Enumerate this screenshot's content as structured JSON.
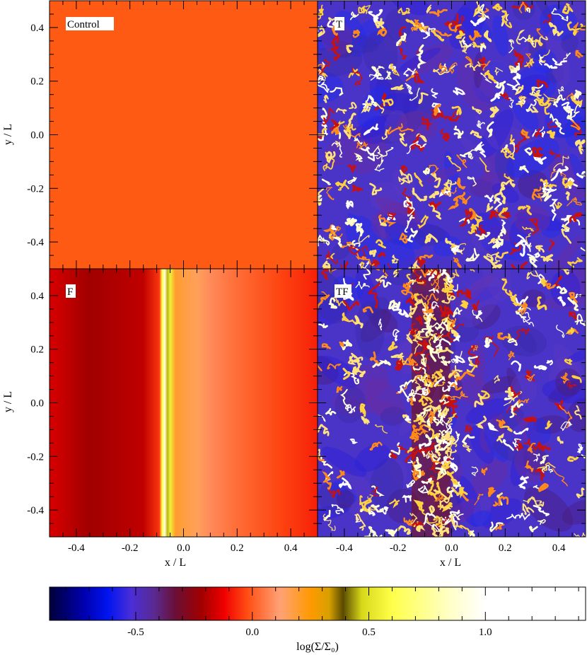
{
  "chart_data": {
    "type": "heatmap",
    "layout": "2x2 panels",
    "panels": [
      {
        "label": "Control",
        "field": "uniform",
        "value": 0.0
      },
      {
        "label": "T",
        "field": "turbulent filaments"
      },
      {
        "label": "F",
        "field": "vertical filament",
        "x_profile": [
          {
            "x": -0.5,
            "v": -0.15
          },
          {
            "x": -0.35,
            "v": -0.22
          },
          {
            "x": -0.15,
            "v": -0.18
          },
          {
            "x": -0.09,
            "v": -0.05
          },
          {
            "x": -0.08,
            "v": 0.6
          },
          {
            "x": -0.07,
            "v": 0.9
          },
          {
            "x": -0.06,
            "v": 0.45
          },
          {
            "x": -0.05,
            "v": 0.55
          },
          {
            "x": -0.03,
            "v": 0.2
          },
          {
            "x": 0.0,
            "v": 0.18
          },
          {
            "x": 0.05,
            "v": 0.15
          },
          {
            "x": 0.1,
            "v": 0.08
          },
          {
            "x": 0.2,
            "v": 0.03
          },
          {
            "x": 0.35,
            "v": -0.03
          },
          {
            "x": 0.5,
            "v": -0.08
          }
        ]
      },
      {
        "label": "TF",
        "field": "turbulent filaments + vertical filament"
      }
    ],
    "xlabel": "x / L",
    "ylabel": "y / L",
    "xlim": [
      -0.5,
      0.5
    ],
    "ylim": [
      -0.5,
      0.5
    ],
    "x_ticks": [
      "-0.4",
      "-0.2",
      "0.0",
      "0.2",
      "0.4"
    ],
    "y_ticks": [
      "0.4",
      "0.2",
      "0.0",
      "-0.2",
      "-0.4"
    ],
    "colorbar": {
      "label": "log(Σ/Σ₀)",
      "range": [
        -0.87,
        1.43
      ],
      "ticks": [
        "-0.5",
        "0.0",
        "0.5",
        "1.0"
      ],
      "tick_values": [
        -0.5,
        0.0,
        0.5,
        1.0
      ],
      "colormap": "blue-purple-red-orange-yellow-white",
      "stops": [
        {
          "v": -0.87,
          "color": "#00003a"
        },
        {
          "v": -0.72,
          "color": "#0000b0"
        },
        {
          "v": -0.62,
          "color": "#0014f0"
        },
        {
          "v": -0.52,
          "color": "#4a2ed8"
        },
        {
          "v": -0.42,
          "color": "#5a2a90"
        },
        {
          "v": -0.33,
          "color": "#6a0f36"
        },
        {
          "v": -0.22,
          "color": "#a00000"
        },
        {
          "v": -0.12,
          "color": "#f00000"
        },
        {
          "v": -0.02,
          "color": "#ff4f14"
        },
        {
          "v": 0.12,
          "color": "#ffa276"
        },
        {
          "v": 0.25,
          "color": "#ff9a00"
        },
        {
          "v": 0.33,
          "color": "#d7a000"
        },
        {
          "v": 0.39,
          "color": "#5a4a00"
        },
        {
          "v": 0.47,
          "color": "#d8d81a"
        },
        {
          "v": 0.6,
          "color": "#ffff4a"
        },
        {
          "v": 0.85,
          "color": "#ffffc8"
        },
        {
          "v": 1.0,
          "color": "#ffffff"
        },
        {
          "v": 1.43,
          "color": "#ffffff"
        }
      ]
    },
    "grid": false
  }
}
